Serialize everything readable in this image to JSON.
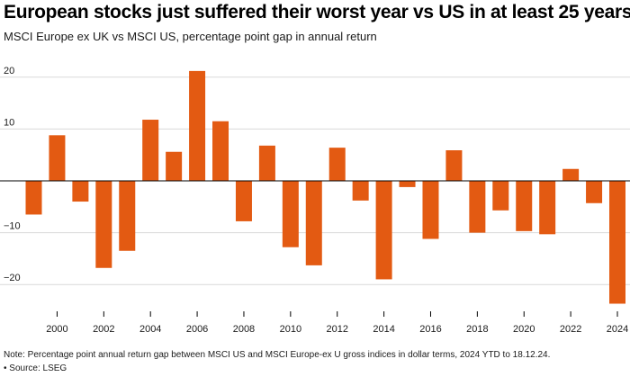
{
  "chart_data": {
    "type": "bar",
    "title": "European stocks just suffered their worst year vs US in at least 25 years",
    "subtitle": "MSCI Europe ex UK vs MSCI US, percentage point gap in annual return",
    "xlabel": "",
    "ylabel": "",
    "categories": [
      "1999",
      "2000",
      "2001",
      "2002",
      "2003",
      "2004",
      "2005",
      "2006",
      "2007",
      "2008",
      "2009",
      "2010",
      "2011",
      "2012",
      "2013",
      "2014",
      "2015",
      "2016",
      "2017",
      "2018",
      "2019",
      "2020",
      "2021",
      "2022",
      "2023",
      "2024"
    ],
    "x_tick_labels": [
      "2000",
      "2002",
      "2004",
      "2006",
      "2008",
      "2010",
      "2012",
      "2014",
      "2016",
      "2018",
      "2020",
      "2022",
      "2024"
    ],
    "y_tick_labels": [
      "20",
      "10",
      "−10",
      "−20"
    ],
    "y_ticks": [
      20,
      10,
      -10,
      -20
    ],
    "ylim": [
      -26,
      24
    ],
    "values": [
      -6.5,
      8.8,
      -4.0,
      -16.8,
      -13.5,
      11.8,
      5.6,
      21.2,
      11.5,
      -7.8,
      6.8,
      -12.8,
      -16.3,
      6.4,
      -3.8,
      -19.0,
      -1.2,
      -11.2,
      5.9,
      -10.0,
      -5.7,
      -9.7,
      -10.3,
      2.3,
      -4.3,
      -23.7
    ],
    "grid": true,
    "bar_color": "#e35a12"
  },
  "footer": {
    "note": "Note: Percentage point annual return gap between MSCI US and MSCI Europe-ex U gross indices in dollar terms, 2024 YTD to 18.12.24.",
    "source": "• Source: LSEG"
  }
}
